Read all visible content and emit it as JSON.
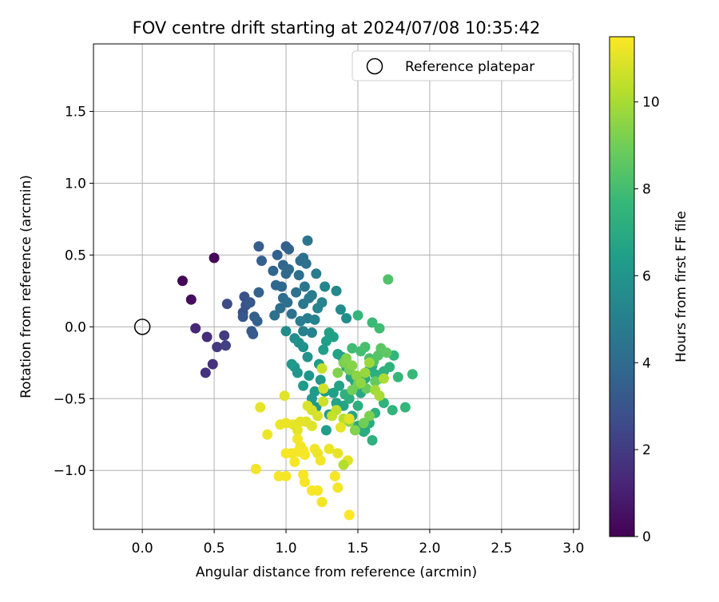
{
  "chart_data": {
    "type": "scatter",
    "title": "FOV centre drift starting at 2024/07/08 10:35:42",
    "xlabel": "Angular distance from reference (arcmin)",
    "ylabel": "Rotation from reference (arcmin)",
    "xlim": [
      -0.34,
      3.04
    ],
    "ylim": [
      -1.41,
      1.97
    ],
    "xticks": [
      0.0,
      0.5,
      1.0,
      1.5,
      2.0,
      2.5,
      3.0
    ],
    "xtick_labels": [
      "0.0",
      "0.5",
      "1.0",
      "1.5",
      "2.0",
      "2.5",
      "3.0"
    ],
    "yticks": [
      -1.0,
      -0.5,
      0.0,
      0.5,
      1.0,
      1.5
    ],
    "ytick_labels": [
      "−1.0",
      "−0.5",
      "0.0",
      "0.5",
      "1.0",
      "1.5"
    ],
    "grid": true,
    "legend": {
      "position": "top-right",
      "entries": [
        "Reference platepar"
      ]
    },
    "reference_point": {
      "x": 0.0,
      "y": 0.0,
      "label": "Reference platepar"
    },
    "colorbar": {
      "label": "Hours from first FF file",
      "colormap": "viridis",
      "range": [
        0,
        11.5
      ],
      "ticks": [
        0,
        2,
        4,
        6,
        8,
        10
      ],
      "tick_labels": [
        "0",
        "2",
        "4",
        "6",
        "8",
        "10"
      ]
    },
    "points": [
      [
        0.28,
        0.32,
        0.1
      ],
      [
        0.5,
        0.48,
        0.2
      ],
      [
        0.34,
        0.19,
        0.4
      ],
      [
        0.37,
        -0.01,
        1.2
      ],
      [
        0.45,
        -0.07,
        1.5
      ],
      [
        0.49,
        -0.26,
        1.6
      ],
      [
        0.44,
        -0.32,
        1.7
      ],
      [
        0.52,
        -0.14,
        1.9
      ],
      [
        0.57,
        -0.06,
        2.0
      ],
      [
        0.58,
        -0.13,
        2.2
      ],
      [
        0.59,
        0.16,
        2.6
      ],
      [
        0.7,
        0.1,
        2.8
      ],
      [
        0.71,
        0.21,
        2.9
      ],
      [
        0.72,
        0.15,
        3.0
      ],
      [
        0.7,
        0.07,
        3.1
      ],
      [
        0.75,
        0.17,
        3.2
      ],
      [
        0.76,
        -0.03,
        3.2
      ],
      [
        0.77,
        -0.05,
        3.3
      ],
      [
        0.78,
        0.07,
        3.4
      ],
      [
        0.8,
        0.04,
        3.5
      ],
      [
        0.81,
        0.24,
        3.6
      ],
      [
        0.81,
        0.56,
        3.4
      ],
      [
        0.83,
        0.46,
        3.5
      ],
      [
        0.91,
        0.39,
        3.7
      ],
      [
        0.93,
        0.29,
        3.8
      ],
      [
        0.94,
        0.5,
        3.6
      ],
      [
        0.97,
        0.28,
        3.9
      ],
      [
        0.98,
        0.43,
        3.8
      ],
      [
        1.0,
        0.56,
        3.5
      ],
      [
        1.02,
        0.54,
        3.6
      ],
      [
        1.0,
        0.37,
        3.9
      ],
      [
        1.02,
        0.4,
        4.0
      ],
      [
        0.96,
        0.13,
        4.1
      ],
      [
        0.98,
        0.2,
        4.1
      ],
      [
        1.01,
        0.17,
        4.2
      ],
      [
        0.92,
        0.08,
        4.3
      ],
      [
        1.04,
        0.09,
        4.3
      ],
      [
        1.07,
        0.24,
        4.3
      ],
      [
        1.09,
        0.36,
        4.2
      ],
      [
        1.1,
        0.46,
        4.1
      ],
      [
        1.12,
        0.48,
        4.2
      ],
      [
        1.14,
        0.44,
        4.3
      ],
      [
        1.15,
        0.6,
        4.5
      ],
      [
        1.13,
        0.28,
        4.5
      ],
      [
        1.12,
        0.16,
        4.6
      ],
      [
        1.16,
        0.2,
        4.7
      ],
      [
        1.18,
        0.22,
        4.8
      ],
      [
        1.21,
        0.37,
        4.8
      ],
      [
        1.15,
        0.06,
        4.9
      ],
      [
        1.1,
        0.04,
        4.9
      ],
      [
        1.12,
        -0.03,
        5.0
      ],
      [
        1.18,
        -0.04,
        5.1
      ],
      [
        1.2,
        0.05,
        5.1
      ],
      [
        1.22,
        0.13,
        5.2
      ],
      [
        1.25,
        0.17,
        5.2
      ],
      [
        1.27,
        0.28,
        5.3
      ],
      [
        1.35,
        0.25,
        5.4
      ],
      [
        1.38,
        0.12,
        5.5
      ],
      [
        1.42,
        0.06,
        5.6
      ],
      [
        1.0,
        -0.03,
        5.6
      ],
      [
        1.06,
        -0.08,
        5.7
      ],
      [
        1.09,
        -0.11,
        5.8
      ],
      [
        1.12,
        -0.14,
        5.8
      ],
      [
        1.15,
        -0.21,
        5.9
      ],
      [
        1.16,
        -0.34,
        6.0
      ],
      [
        1.08,
        -0.32,
        6.0
      ],
      [
        1.06,
        -0.28,
        6.1
      ],
      [
        1.04,
        -0.26,
        6.2
      ],
      [
        1.12,
        -0.41,
        6.2
      ],
      [
        1.2,
        -0.45,
        6.3
      ],
      [
        1.23,
        -0.26,
        6.3
      ],
      [
        1.26,
        -0.16,
        6.4
      ],
      [
        1.28,
        -0.1,
        6.4
      ],
      [
        1.3,
        -0.04,
        6.5
      ],
      [
        1.33,
        -0.07,
        6.5
      ],
      [
        1.36,
        -0.19,
        6.6
      ],
      [
        1.39,
        -0.21,
        6.6
      ],
      [
        1.42,
        -0.28,
        6.7
      ],
      [
        1.45,
        -0.35,
        6.7
      ],
      [
        1.48,
        -0.38,
        6.8
      ],
      [
        1.5,
        -0.43,
        6.9
      ],
      [
        1.52,
        -0.46,
        6.9
      ],
      [
        1.55,
        -0.36,
        7.0
      ],
      [
        1.58,
        -0.3,
        7.0
      ],
      [
        1.6,
        -0.27,
        7.1
      ],
      [
        1.62,
        -0.33,
        7.2
      ],
      [
        1.65,
        -0.36,
        7.3
      ],
      [
        1.68,
        -0.31,
        7.3
      ],
      [
        1.72,
        -0.28,
        7.4
      ],
      [
        1.75,
        -0.2,
        7.5
      ],
      [
        1.78,
        -0.35,
        7.6
      ],
      [
        1.88,
        -0.33,
        7.7
      ],
      [
        1.83,
        -0.56,
        7.6
      ],
      [
        1.74,
        -0.58,
        7.5
      ],
      [
        1.68,
        -0.53,
        7.4
      ],
      [
        1.62,
        -0.6,
        7.3
      ],
      [
        1.58,
        -0.67,
        7.1
      ],
      [
        1.55,
        -0.72,
        7.0
      ],
      [
        1.5,
        -0.69,
        6.9
      ],
      [
        1.46,
        -0.62,
        6.8
      ],
      [
        1.4,
        -0.55,
        6.7
      ],
      [
        1.35,
        -0.53,
        6.6
      ],
      [
        1.3,
        -0.61,
        6.5
      ],
      [
        1.28,
        -0.72,
        6.4
      ],
      [
        1.33,
        -0.46,
        6.5
      ],
      [
        1.37,
        -0.41,
        6.6
      ],
      [
        1.24,
        -0.37,
        6.2
      ],
      [
        1.27,
        -0.45,
        6.3
      ],
      [
        1.21,
        -0.56,
        6.2
      ],
      [
        1.18,
        -0.5,
        6.1
      ],
      [
        1.6,
        -0.79,
        7.3
      ],
      [
        1.54,
        -0.73,
        7.1
      ],
      [
        1.5,
        -0.55,
        7.2
      ],
      [
        1.44,
        -0.5,
        7.2
      ],
      [
        1.41,
        -0.47,
        7.3
      ],
      [
        1.6,
        0.03,
        7.8
      ],
      [
        1.65,
        -0.01,
        7.9
      ],
      [
        1.5,
        0.08,
        7.6
      ],
      [
        1.46,
        -0.15,
        7.9
      ],
      [
        1.52,
        -0.17,
        8.0
      ],
      [
        1.55,
        -0.14,
        8.1
      ],
      [
        1.58,
        -0.22,
        8.2
      ],
      [
        1.61,
        -0.24,
        8.3
      ],
      [
        1.64,
        -0.2,
        8.4
      ],
      [
        1.66,
        -0.15,
        8.5
      ],
      [
        1.7,
        -0.18,
        8.6
      ],
      [
        1.62,
        -0.38,
        8.7
      ],
      [
        1.56,
        -0.43,
        8.8
      ],
      [
        1.5,
        -0.4,
        8.9
      ],
      [
        1.46,
        -0.44,
        9.0
      ],
      [
        1.44,
        -0.3,
        9.1
      ],
      [
        1.4,
        -0.25,
        9.2
      ],
      [
        1.36,
        -0.32,
        9.3
      ],
      [
        1.42,
        -0.22,
        9.3
      ],
      [
        1.46,
        -0.27,
        9.4
      ],
      [
        1.49,
        -0.34,
        9.5
      ],
      [
        1.52,
        -0.39,
        9.6
      ],
      [
        1.55,
        -0.32,
        9.7
      ],
      [
        1.58,
        -0.25,
        9.8
      ],
      [
        1.62,
        -0.44,
        9.9
      ],
      [
        1.65,
        -0.48,
        10.0
      ],
      [
        1.68,
        -0.36,
        10.1
      ],
      [
        1.71,
        0.33,
        8.3
      ],
      [
        1.58,
        -0.62,
        9.2
      ],
      [
        1.54,
        -0.67,
        9.0
      ],
      [
        1.48,
        -0.72,
        9.3
      ],
      [
        1.44,
        -0.66,
        9.6
      ],
      [
        1.4,
        -0.64,
        10.3
      ],
      [
        1.35,
        -0.58,
        10.4
      ],
      [
        1.32,
        -0.62,
        10.5
      ],
      [
        1.26,
        -0.52,
        10.6
      ],
      [
        1.25,
        -0.29,
        10.5
      ],
      [
        1.26,
        -0.43,
        10.7
      ],
      [
        1.22,
        -0.62,
        10.8
      ],
      [
        1.18,
        -0.58,
        10.8
      ],
      [
        1.15,
        -0.55,
        10.9
      ],
      [
        1.18,
        -0.69,
        11.0
      ],
      [
        1.14,
        -0.66,
        11.0
      ],
      [
        1.1,
        -0.66,
        11.1
      ],
      [
        1.08,
        -0.72,
        11.1
      ],
      [
        1.05,
        -0.68,
        11.1
      ],
      [
        1.0,
        -0.67,
        11.2
      ],
      [
        0.96,
        -0.68,
        11.2
      ],
      [
        0.87,
        -0.75,
        11.2
      ],
      [
        0.82,
        -0.56,
        11.1
      ],
      [
        0.99,
        -0.48,
        11.0
      ],
      [
        1.08,
        -0.78,
        11.3
      ],
      [
        1.1,
        -0.83,
        11.3
      ],
      [
        1.12,
        -0.86,
        11.3
      ],
      [
        1.04,
        -0.88,
        11.3
      ],
      [
        1.0,
        -0.88,
        11.4
      ],
      [
        1.06,
        -0.94,
        11.4
      ],
      [
        1.08,
        -0.87,
        11.4
      ],
      [
        1.13,
        -0.89,
        11.4
      ],
      [
        1.2,
        -0.85,
        11.3
      ],
      [
        1.22,
        -0.88,
        11.2
      ],
      [
        1.24,
        -0.93,
        11.3
      ],
      [
        1.3,
        -0.85,
        11.2
      ],
      [
        1.36,
        -0.88,
        11.1
      ],
      [
        1.43,
        -0.93,
        11.0
      ],
      [
        1.4,
        -0.96,
        10.2
      ],
      [
        1.44,
        -0.64,
        11.0
      ],
      [
        1.38,
        -0.7,
        11.1
      ],
      [
        0.79,
        -0.99,
        11.3
      ],
      [
        0.95,
        -1.04,
        11.4
      ],
      [
        1.0,
        -1.04,
        11.4
      ],
      [
        1.12,
        -1.03,
        11.4
      ],
      [
        1.13,
        -1.08,
        11.4
      ],
      [
        1.18,
        -1.14,
        11.4
      ],
      [
        1.22,
        -1.14,
        11.4
      ],
      [
        1.25,
        -1.22,
        11.3
      ],
      [
        1.34,
        -1.04,
        11.4
      ],
      [
        1.36,
        -1.12,
        11.3
      ],
      [
        1.44,
        -1.31,
        11.5
      ]
    ]
  }
}
